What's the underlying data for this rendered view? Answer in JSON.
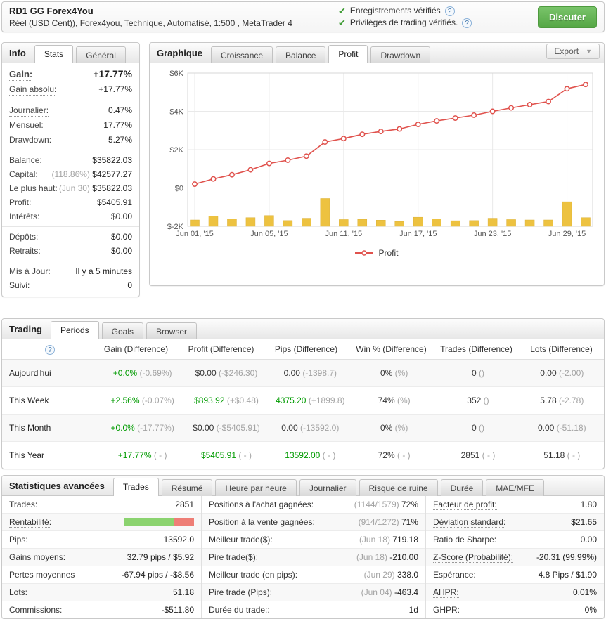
{
  "colors": {
    "green_value": "#009b00",
    "check_green": "#3f9c35",
    "button_green": "#5cb85c",
    "line_red": "#e0524d",
    "bar_yellow": "#edc240",
    "profit_bar_green": "#8bd36f",
    "profit_bar_red": "#ee7e76",
    "diff_gray": "#a3a3a3"
  },
  "header": {
    "title": "RD1 GG Forex4You",
    "subtitle_prefix": "Réel (USD Cent)), ",
    "subtitle_link": "Forex4you",
    "subtitle_suffix": ", Technique, Automatisé, 1:500 , MetaTrader 4",
    "verified": [
      {
        "text": "Enregistrements vérifiés",
        "check_icon": "check-icon",
        "help_icon": "help-icon"
      },
      {
        "text": "Privilèges de trading vérifiés.",
        "check_icon": "check-icon",
        "help_icon": "help-icon"
      }
    ],
    "discuss_button": "Discuter"
  },
  "info_panel": {
    "title": "Info",
    "tabs": [
      {
        "label": "Stats",
        "active": true
      },
      {
        "label": "Général",
        "active": false
      }
    ],
    "groups": [
      [
        {
          "label": "Gain:",
          "value": "+17.77%",
          "green": true,
          "big": true,
          "dotted": true
        },
        {
          "label": "Gain absolu:",
          "value": "+17.77%",
          "green": true,
          "dotted": true
        }
      ],
      [
        {
          "label": "Journalier:",
          "value": "0.47%",
          "dotted": true
        },
        {
          "label": "Mensuel:",
          "value": "17.77%",
          "dotted": true
        },
        {
          "label": "Drawdown:",
          "value": "5.27%"
        }
      ],
      [
        {
          "label": "Balance:",
          "value": "$35822.03"
        },
        {
          "label": "Capital:",
          "pre": "(118.86%) ",
          "value": "$42577.27"
        },
        {
          "label": "Le plus haut:",
          "pre": "(Jun 30) ",
          "value": "$35822.03"
        },
        {
          "label": "Profit:",
          "value": "$5405.91",
          "green": true
        },
        {
          "label": "Intérêts:",
          "value": "$0.00"
        }
      ],
      [
        {
          "label": "Dépôts:",
          "value": "$0.00"
        },
        {
          "label": "Retraits:",
          "value": "$0.00"
        }
      ],
      [
        {
          "label": "Mis à Jour:",
          "value": "Il y a 5 minutes"
        },
        {
          "label": "Suivi:",
          "value": "0",
          "link": true
        }
      ]
    ]
  },
  "chart_panel": {
    "title": "Graphique",
    "tabs": [
      {
        "label": "Croissance",
        "active": false
      },
      {
        "label": "Balance",
        "active": false
      },
      {
        "label": "Profit",
        "active": true
      },
      {
        "label": "Drawdown",
        "active": false
      }
    ],
    "export_label": "Export"
  },
  "chart_data": {
    "type": "line",
    "title": "Profit",
    "ylim": [
      -2000,
      6000
    ],
    "y_ticks": [
      {
        "v": 6000,
        "label": "$6K"
      },
      {
        "v": 4000,
        "label": "$4K"
      },
      {
        "v": 2000,
        "label": "$2K"
      },
      {
        "v": 0,
        "label": "$0"
      },
      {
        "v": -2000,
        "label": "$-2K"
      }
    ],
    "x_tick_labels": [
      {
        "i": 0,
        "label": "Jun 01, '15"
      },
      {
        "i": 4,
        "label": "Jun 05, '15"
      },
      {
        "i": 8,
        "label": "Jun 11, '15"
      },
      {
        "i": 12,
        "label": "Jun 17, '15"
      },
      {
        "i": 16,
        "label": "Jun 23, '15"
      },
      {
        "i": 20,
        "label": "Jun 29, '15"
      }
    ],
    "grid": true,
    "legend_position": "bottom",
    "series": [
      {
        "name": "Profit",
        "type": "line",
        "color": "#e0524d",
        "values": [
          200,
          470,
          690,
          950,
          1280,
          1450,
          1660,
          2400,
          2580,
          2800,
          2950,
          3080,
          3320,
          3500,
          3650,
          3800,
          4000,
          4180,
          4350,
          4510,
          5180,
          5406
        ]
      },
      {
        "name": "daily-volume-bars",
        "type": "bar",
        "color": "#edc240",
        "baseline": -2000,
        "values": [
          330,
          530,
          390,
          450,
          560,
          300,
          420,
          1450,
          350,
          360,
          320,
          250,
          470,
          390,
          290,
          300,
          420,
          350,
          330,
          330,
          1280,
          450
        ]
      }
    ]
  },
  "trading_panel": {
    "title": "Trading",
    "tabs": [
      {
        "label": "Periods",
        "active": true
      },
      {
        "label": "Goals",
        "active": false
      },
      {
        "label": "Browser",
        "active": false
      }
    ],
    "help_icon": "?",
    "columns": [
      "Gain (Difference)",
      "Profit (Difference)",
      "Pips (Difference)",
      "Win % (Difference)",
      "Trades (Difference)",
      "Lots (Difference)"
    ],
    "rows": [
      {
        "label": "Aujourd'hui",
        "cells": [
          {
            "main": "+0.0%",
            "diff": "(-0.69%)",
            "green": true
          },
          {
            "main": "$0.00",
            "diff": "(-$246.30)"
          },
          {
            "main": "0.00",
            "diff": "(-1398.7)"
          },
          {
            "main": "0%",
            "diff": "(%)"
          },
          {
            "main": "0",
            "diff": "()"
          },
          {
            "main": "0.00",
            "diff": "(-2.00)"
          }
        ]
      },
      {
        "label": "This Week",
        "cells": [
          {
            "main": "+2.56%",
            "diff": "(-0.07%)",
            "green": true
          },
          {
            "main": "$893.92",
            "diff": "(+$0.48)",
            "green": true
          },
          {
            "main": "4375.20",
            "diff": "(+1899.8)",
            "green": true
          },
          {
            "main": "74%",
            "diff": "(%)"
          },
          {
            "main": "352",
            "diff": "()"
          },
          {
            "main": "5.78",
            "diff": "(-2.78)"
          }
        ]
      },
      {
        "label": "This Month",
        "cells": [
          {
            "main": "+0.0%",
            "diff": "(-17.77%)",
            "green": true
          },
          {
            "main": "$0.00",
            "diff": "(-$5405.91)"
          },
          {
            "main": "0.00",
            "diff": "(-13592.0)"
          },
          {
            "main": "0%",
            "diff": "(%)"
          },
          {
            "main": "0",
            "diff": "()"
          },
          {
            "main": "0.00",
            "diff": "(-51.18)"
          }
        ]
      },
      {
        "label": "This Year",
        "cells": [
          {
            "main": "+17.77%",
            "diff": "( - )",
            "green": true
          },
          {
            "main": "$5405.91",
            "diff": "( - )",
            "green": true
          },
          {
            "main": "13592.00",
            "diff": "( - )",
            "green": true
          },
          {
            "main": "72%",
            "diff": "( - )"
          },
          {
            "main": "2851",
            "diff": "( - )"
          },
          {
            "main": "51.18",
            "diff": "( - )"
          }
        ]
      }
    ]
  },
  "stats_panel": {
    "title": "Statistiques avancées",
    "tabs": [
      {
        "label": "Trades",
        "active": true
      },
      {
        "label": "Résumé",
        "active": false
      },
      {
        "label": "Heure par heure",
        "active": false
      },
      {
        "label": "Journalier",
        "active": false
      },
      {
        "label": "Risque de ruine",
        "active": false
      },
      {
        "label": "Durée",
        "active": false
      },
      {
        "label": "MAE/MFE",
        "active": false
      }
    ],
    "columns": [
      [
        {
          "label": "Trades:",
          "value": "2851"
        },
        {
          "label": "Rentabilité:",
          "bar_green_pct": 72,
          "dotted": true
        },
        {
          "label": "Pips:",
          "value": "13592.0"
        },
        {
          "label": "Gains moyens:",
          "value": "32.79 pips / $5.92"
        },
        {
          "label": "Pertes moyennes",
          "value": "-67.94 pips / -$8.56"
        },
        {
          "label": "Lots:",
          "value": "51.18"
        },
        {
          "label": "Commissions:",
          "value": "-$511.80"
        }
      ],
      [
        {
          "label": "Positions à l'achat gagnées:",
          "pre": "(1144/1579) ",
          "value": "72%"
        },
        {
          "label": "Position à la vente gagnées:",
          "pre": "(914/1272) ",
          "value": "71%"
        },
        {
          "label": "Meilleur trade($):",
          "pre": "(Jun 18) ",
          "value": "719.18"
        },
        {
          "label": "Pire trade($):",
          "pre": "(Jun 18) ",
          "value": "-210.00"
        },
        {
          "label": "Meilleur trade (en pips):",
          "pre": "(Jun 29) ",
          "value": "338.0"
        },
        {
          "label": "Pire trade (Pips):",
          "pre": "(Jun 04) ",
          "value": "-463.4"
        },
        {
          "label": "Durée du trade::",
          "value": "1d"
        }
      ],
      [
        {
          "label": "Facteur de profit:",
          "value": "1.80",
          "dotted": true
        },
        {
          "label": "Déviation standard:",
          "value": "$21.65",
          "dotted": true
        },
        {
          "label": "Ratio de Sharpe:",
          "value": "0.00",
          "dotted": true
        },
        {
          "label": "Z-Score (Probabilité):",
          "value": "-20.31 (99.99%)",
          "dotted": true
        },
        {
          "label": "Espérance:",
          "value": "4.8 Pips / $1.90",
          "dotted": true
        },
        {
          "label": "AHPR:",
          "value": "0.01%",
          "dotted": true
        },
        {
          "label": "GHPR:",
          "value": "0%",
          "dotted": true
        }
      ]
    ]
  }
}
